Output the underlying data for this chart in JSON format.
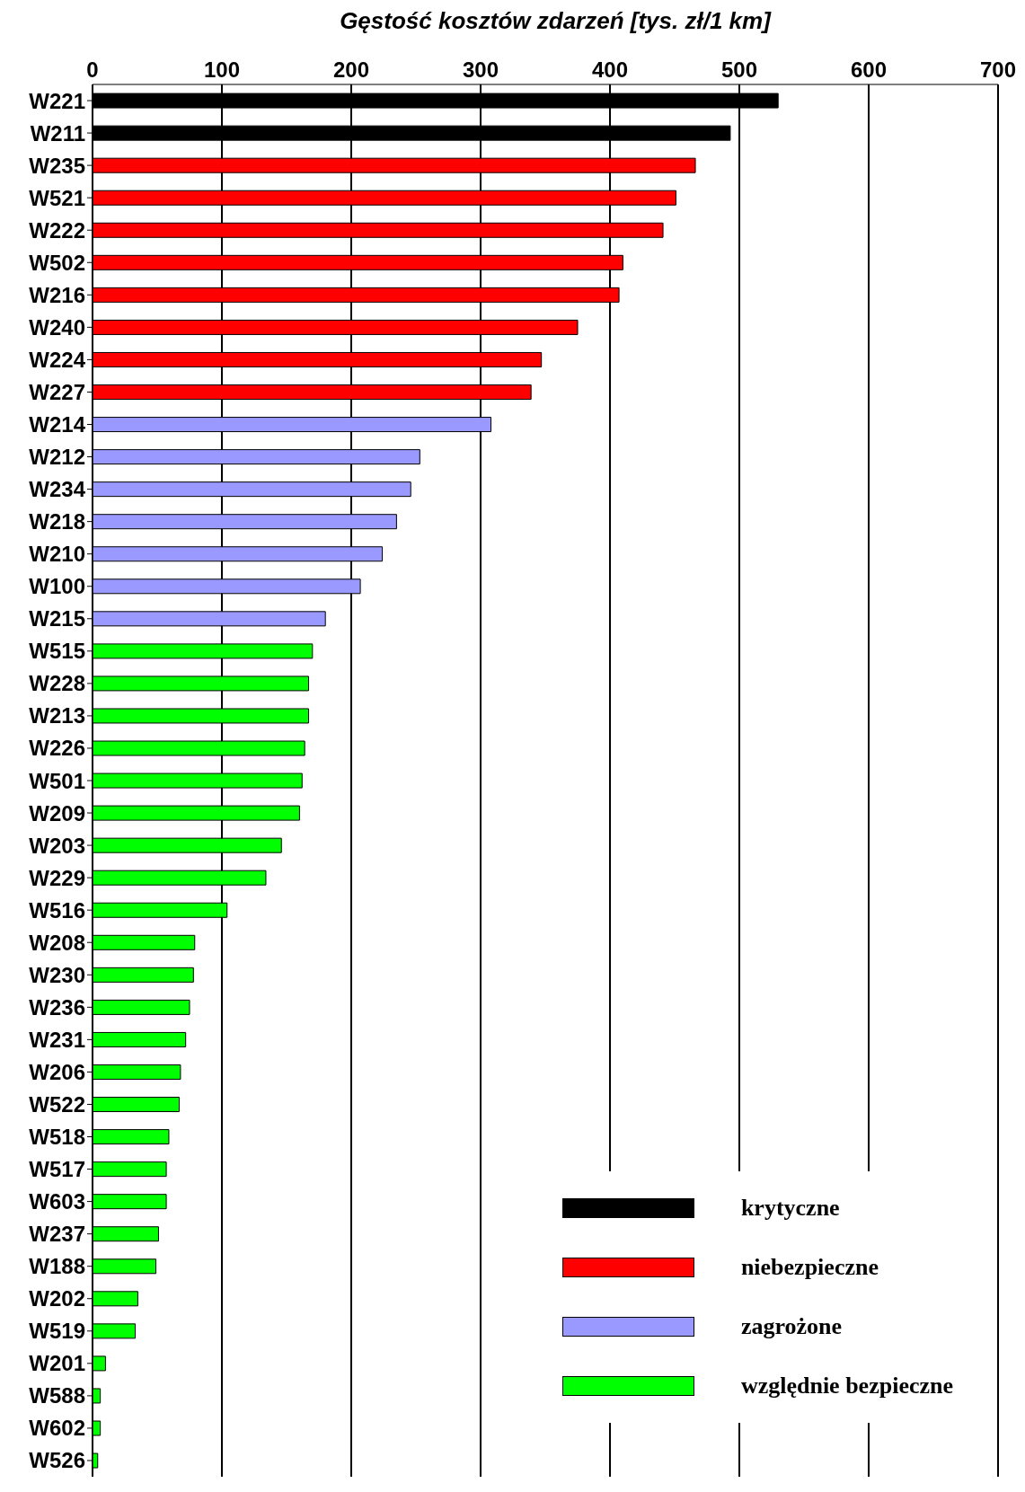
{
  "chart_data": {
    "type": "bar",
    "orientation": "horizontal",
    "stacked": true,
    "title": "Gęstość kosztów zdarzeń [tys. zł/1 km]",
    "categories": [
      "W221",
      "W211",
      "W235",
      "W521",
      "W222",
      "W502",
      "W216",
      "W240",
      "W224",
      "W227",
      "W214",
      "W212",
      "W234",
      "W218",
      "W210",
      "W100",
      "W215",
      "W515",
      "W228",
      "W213",
      "W226",
      "W501",
      "W209",
      "W203",
      "W229",
      "W516",
      "W208",
      "W230",
      "W236",
      "W231",
      "W206",
      "W522",
      "W518",
      "W517",
      "W603",
      "W237",
      "W188",
      "W202",
      "W519",
      "W201",
      "W588",
      "W602",
      "W526"
    ],
    "series": [
      {
        "name": "krytyczne",
        "color": "#000000",
        "values": [
          530,
          493,
          null,
          null,
          null,
          null,
          null,
          null,
          null,
          null,
          null,
          null,
          null,
          null,
          null,
          null,
          null,
          null,
          null,
          null,
          null,
          null,
          null,
          null,
          null,
          null,
          null,
          null,
          null,
          null,
          null,
          null,
          null,
          null,
          null,
          null,
          null,
          null,
          null,
          null,
          null,
          null,
          null
        ]
      },
      {
        "name": "niebezpieczne",
        "color": "#ff0000",
        "values": [
          null,
          null,
          466,
          451,
          441,
          410,
          407,
          375,
          347,
          339,
          null,
          null,
          null,
          null,
          null,
          null,
          null,
          null,
          null,
          null,
          null,
          null,
          null,
          null,
          null,
          null,
          null,
          null,
          null,
          null,
          null,
          null,
          null,
          null,
          null,
          null,
          null,
          null,
          null,
          null,
          null,
          null,
          null
        ]
      },
      {
        "name": "zagrożone",
        "color": "#9999ff",
        "values": [
          null,
          null,
          null,
          null,
          null,
          null,
          null,
          null,
          null,
          null,
          308,
          253,
          246,
          235,
          224,
          207,
          180,
          null,
          null,
          null,
          null,
          null,
          null,
          null,
          null,
          null,
          null,
          null,
          null,
          null,
          null,
          null,
          null,
          null,
          null,
          null,
          null,
          null,
          null,
          null,
          null,
          null,
          null
        ]
      },
      {
        "name": "względnie bezpieczne",
        "color": "#00ff00",
        "values": [
          null,
          null,
          null,
          null,
          null,
          null,
          null,
          null,
          null,
          null,
          null,
          null,
          null,
          null,
          null,
          null,
          null,
          170,
          167,
          167,
          164,
          162,
          160,
          146,
          134,
          104,
          79,
          78,
          75,
          72,
          68,
          67,
          59,
          57,
          57,
          51,
          49,
          35,
          33,
          10,
          6,
          6,
          4
        ]
      }
    ],
    "xlim": [
      0,
      700
    ],
    "xticks": [
      0,
      100,
      200,
      300,
      400,
      500,
      600,
      700
    ],
    "grid": "x",
    "legend": "bottom right"
  }
}
